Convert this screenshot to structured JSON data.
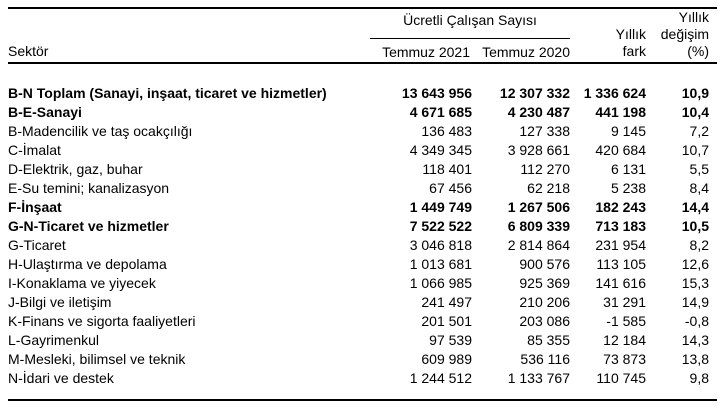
{
  "colors": {
    "text": "#000000",
    "background": "#ffffff",
    "rule": "#000000"
  },
  "header": {
    "sector": "Sektör",
    "group_title": "Ücretli Çalışan Sayısı",
    "temmuz_2021": "Temmuz 2021",
    "temmuz_2020": "Temmuz 2020",
    "fark_line1": "Yıllık",
    "fark_line2": "fark",
    "degisim_line1": "Yıllık",
    "degisim_line2": "değişim",
    "degisim_line3": "(%)"
  },
  "chart_data": {
    "type": "table",
    "title": "",
    "column_group": {
      "title": "Ücretli Çalışan Sayısı",
      "spans": [
        "Temmuz 2021",
        "Temmuz 2020"
      ]
    },
    "columns": [
      "Sektör",
      "Temmuz 2021",
      "Temmuz 2020",
      "Yıllık fark",
      "Yıllık değişim (%)"
    ],
    "rows": [
      {
        "sector": "B-N Toplam (Sanayi, inşaat, ticaret ve hizmetler)",
        "temmuz_2021": "13 643 956",
        "temmuz_2020": "12 307 332",
        "yillik_fark": "1 336 624",
        "yillik_degisim": "10,9",
        "bold": true
      },
      {
        "sector": "B-E-Sanayi",
        "temmuz_2021": "4 671 685",
        "temmuz_2020": "4 230 487",
        "yillik_fark": "441 198",
        "yillik_degisim": "10,4",
        "bold": true
      },
      {
        "sector": "B-Madencilik ve taş ocakçılığı",
        "temmuz_2021": "136 483",
        "temmuz_2020": "127 338",
        "yillik_fark": "9 145",
        "yillik_degisim": "7,2",
        "bold": false
      },
      {
        "sector": "C-İmalat",
        "temmuz_2021": "4 349 345",
        "temmuz_2020": "3 928 661",
        "yillik_fark": "420 684",
        "yillik_degisim": "10,7",
        "bold": false
      },
      {
        "sector": "D-Elektrik, gaz, buhar",
        "temmuz_2021": "118 401",
        "temmuz_2020": "112 270",
        "yillik_fark": "6 131",
        "yillik_degisim": "5,5",
        "bold": false
      },
      {
        "sector": "E-Su temini; kanalizasyon",
        "temmuz_2021": "67 456",
        "temmuz_2020": "62 218",
        "yillik_fark": "5 238",
        "yillik_degisim": "8,4",
        "bold": false
      },
      {
        "sector": "F-İnşaat",
        "temmuz_2021": "1 449 749",
        "temmuz_2020": "1 267 506",
        "yillik_fark": "182 243",
        "yillik_degisim": "14,4",
        "bold": true
      },
      {
        "sector": "G-N-Ticaret ve hizmetler",
        "temmuz_2021": "7 522 522",
        "temmuz_2020": "6 809 339",
        "yillik_fark": "713 183",
        "yillik_degisim": "10,5",
        "bold": true
      },
      {
        "sector": "G-Ticaret",
        "temmuz_2021": "3 046 818",
        "temmuz_2020": "2 814 864",
        "yillik_fark": "231 954",
        "yillik_degisim": "8,2",
        "bold": false
      },
      {
        "sector": "H-Ulaştırma ve depolama",
        "temmuz_2021": "1 013 681",
        "temmuz_2020": "900 576",
        "yillik_fark": "113 105",
        "yillik_degisim": "12,6",
        "bold": false
      },
      {
        "sector": "I-Konaklama ve yiyecek",
        "temmuz_2021": "1 066 985",
        "temmuz_2020": "925 369",
        "yillik_fark": "141 616",
        "yillik_degisim": "15,3",
        "bold": false
      },
      {
        "sector": "J-Bilgi ve iletişim",
        "temmuz_2021": "241 497",
        "temmuz_2020": "210 206",
        "yillik_fark": "31 291",
        "yillik_degisim": "14,9",
        "bold": false
      },
      {
        "sector": "K-Finans ve sigorta faaliyetleri",
        "temmuz_2021": "201 501",
        "temmuz_2020": "203 086",
        "yillik_fark": "-1 585",
        "yillik_degisim": "-0,8",
        "bold": false
      },
      {
        "sector": "L-Gayrimenkul",
        "temmuz_2021": "97 539",
        "temmuz_2020": "85 355",
        "yillik_fark": "12 184",
        "yillik_degisim": "14,3",
        "bold": false
      },
      {
        "sector": "M-Mesleki, bilimsel ve teknik",
        "temmuz_2021": "609 989",
        "temmuz_2020": "536 116",
        "yillik_fark": "73 873",
        "yillik_degisim": "13,8",
        "bold": false
      },
      {
        "sector": "N-İdari ve destek",
        "temmuz_2021": "1 244 512",
        "temmuz_2020": "1 133 767",
        "yillik_fark": "110 745",
        "yillik_degisim": "9,8",
        "bold": false
      }
    ]
  }
}
